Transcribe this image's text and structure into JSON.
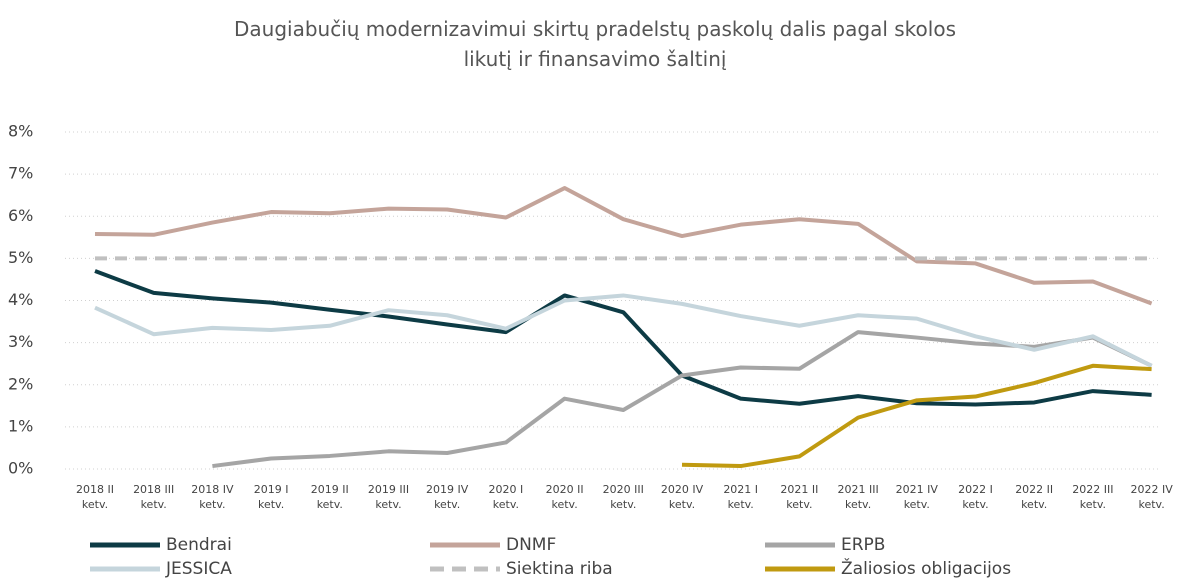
{
  "chart_data": {
    "type": "line",
    "title": "Daugiabučių modernizavimui skirtų pradelstų paskolų dalis pagal skolos likutį ir finansavimo šaltinį",
    "categories": [
      "2018 II ketv.",
      "2018 III ketv.",
      "2018 IV ketv.",
      "2019 I ketv.",
      "2019 II ketv.",
      "2019 III ketv.",
      "2019 IV ketv.",
      "2020 I ketv.",
      "2020 II ketv.",
      "2020 III ketv.",
      "2020 IV ketv.",
      "2021 I ketv.",
      "2021 II ketv.",
      "2021 III ketv.",
      "2021 IV ketv.",
      "2022 I ketv.",
      "2022 II ketv.",
      "2022 III ketv.",
      "2022 IV ketv."
    ],
    "series": [
      {
        "name": "Bendrai",
        "color": "#0d3b45",
        "values": [
          4.7,
          4.18,
          4.05,
          3.95,
          3.78,
          3.62,
          3.43,
          3.25,
          4.12,
          3.72,
          2.22,
          1.67,
          1.55,
          1.73,
          1.56,
          1.53,
          1.58,
          1.85,
          1.76
        ]
      },
      {
        "name": "DNMF",
        "color": "#c4a49a",
        "values": [
          5.58,
          5.56,
          5.85,
          6.1,
          6.07,
          6.18,
          6.16,
          5.97,
          6.67,
          5.93,
          5.53,
          5.8,
          5.93,
          5.82,
          4.93,
          4.88,
          4.42,
          4.45,
          3.93
        ]
      },
      {
        "name": "ERPB",
        "color": "#a5a5a5",
        "values": [
          null,
          null,
          0.07,
          0.25,
          0.31,
          0.42,
          0.38,
          0.63,
          1.67,
          1.4,
          2.22,
          2.41,
          2.38,
          3.25,
          3.12,
          2.98,
          2.9,
          3.12,
          2.45
        ]
      },
      {
        "name": "JESSICA",
        "color": "#c5d5dc",
        "values": [
          3.83,
          3.2,
          3.35,
          3.3,
          3.4,
          3.77,
          3.65,
          3.33,
          4.0,
          4.12,
          3.92,
          3.63,
          3.4,
          3.65,
          3.57,
          3.15,
          2.83,
          3.15,
          2.45
        ]
      },
      {
        "name": "Siektina riba",
        "color": "#c0c0c0",
        "dashed": true,
        "values": [
          5,
          5,
          5,
          5,
          5,
          5,
          5,
          5,
          5,
          5,
          5,
          5,
          5,
          5,
          5,
          5,
          5,
          5,
          5
        ]
      },
      {
        "name": "Žaliosios obligacijos",
        "color": "#c09a10",
        "values": [
          null,
          null,
          null,
          null,
          null,
          null,
          null,
          null,
          null,
          null,
          0.1,
          0.07,
          0.3,
          1.22,
          1.63,
          1.72,
          2.04,
          2.45,
          2.37
        ]
      }
    ],
    "ylim": [
      0,
      8
    ],
    "yticks": [
      {
        "value": 0,
        "label": "0%"
      },
      {
        "value": 1,
        "label": "1%"
      },
      {
        "value": 2,
        "label": "2%"
      },
      {
        "value": 3,
        "label": "3%"
      },
      {
        "value": 4,
        "label": "4%"
      },
      {
        "value": 5,
        "label": "5%"
      },
      {
        "value": 6,
        "label": "6%"
      },
      {
        "value": 7,
        "label": "7%"
      },
      {
        "value": 8,
        "label": "8%"
      }
    ],
    "grid": true,
    "legend": "bottom"
  }
}
